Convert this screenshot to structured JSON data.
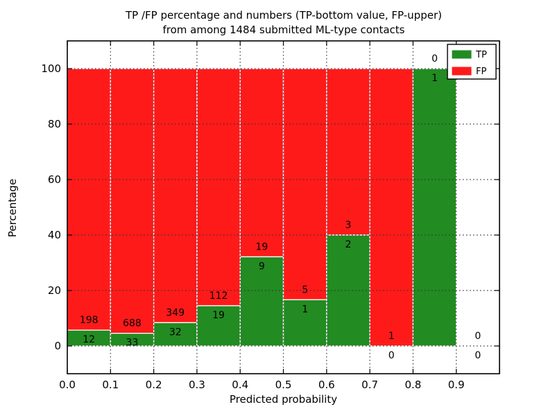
{
  "title": {
    "line1": "TP /FP percentage and numbers (TP-bottom value, FP-upper)",
    "line2": "from among 1484 submitted ML-type contacts"
  },
  "chart_data": {
    "type": "bar",
    "stacked": true,
    "title": "TP /FP percentage and numbers (TP-bottom value, FP-upper) from among 1484 submitted ML-type contacts",
    "xlabel": "Predicted probability",
    "ylabel": "Percentage",
    "total_contacts": 1484,
    "xlim": [
      0.0,
      1.0
    ],
    "ylim": [
      -10,
      110
    ],
    "x_tick_labels": [
      "0.0",
      "0.1",
      "0.2",
      "0.3",
      "0.4",
      "0.5",
      "0.6",
      "0.7",
      "0.8",
      "0.9"
    ],
    "y_tick_values": [
      0,
      20,
      40,
      60,
      80,
      100
    ],
    "grid": "dotted, both axes, drawn over bars",
    "bar_edge_color": "#ffffff",
    "colors": {
      "tp": "#228b22",
      "fp": "#ff1a1a",
      "grid": "#333333",
      "frame": "#000000"
    },
    "legend": {
      "position": "upper right",
      "entries": [
        {
          "label": "TP",
          "color": "#228b22"
        },
        {
          "label": "FP",
          "color": "#ff1a1a"
        }
      ]
    },
    "bins": [
      {
        "range": [
          0.0,
          0.1
        ],
        "tp": 12,
        "fp": 198,
        "tp_pct": 5.71
      },
      {
        "range": [
          0.1,
          0.2
        ],
        "tp": 33,
        "fp": 688,
        "tp_pct": 4.58
      },
      {
        "range": [
          0.2,
          0.3
        ],
        "tp": 32,
        "fp": 349,
        "tp_pct": 8.4
      },
      {
        "range": [
          0.3,
          0.4
        ],
        "tp": 19,
        "fp": 112,
        "tp_pct": 14.5
      },
      {
        "range": [
          0.4,
          0.5
        ],
        "tp": 9,
        "fp": 19,
        "tp_pct": 32.14
      },
      {
        "range": [
          0.5,
          0.6
        ],
        "tp": 1,
        "fp": 5,
        "tp_pct": 16.67
      },
      {
        "range": [
          0.6,
          0.7
        ],
        "tp": 2,
        "fp": 3,
        "tp_pct": 40.0
      },
      {
        "range": [
          0.7,
          0.8
        ],
        "tp": 0,
        "fp": 1,
        "tp_pct": 0.0
      },
      {
        "range": [
          0.8,
          0.9
        ],
        "tp": 1,
        "fp": 0,
        "tp_pct": 100.0
      },
      {
        "range": [
          0.9,
          1.0
        ],
        "tp": 0,
        "fp": 0,
        "tp_pct": null
      }
    ]
  }
}
